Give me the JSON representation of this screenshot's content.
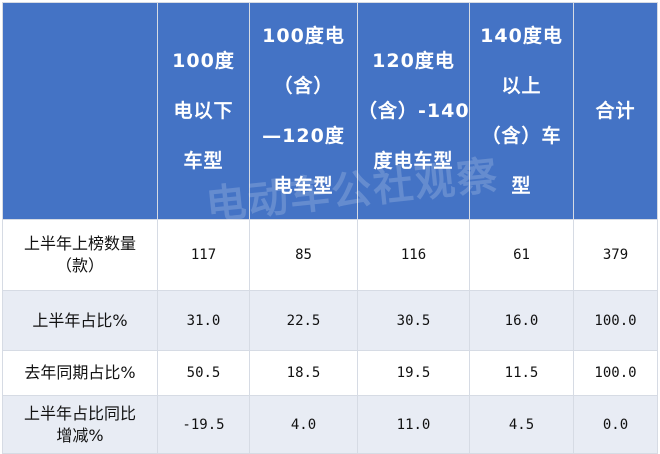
{
  "table": {
    "headers": [
      "",
      "100度\n电以下\n车型",
      "100度电\n（含）\n—120度\n电车型",
      "120度电\n（含）-140\n度电车型",
      "140度电\n以上\n（含）车\n型",
      "合计"
    ],
    "rows": [
      {
        "label": "上半年上榜数量\n（款）",
        "values": [
          "117",
          "85",
          "116",
          "61",
          "379"
        ]
      },
      {
        "label": "上半年占比%",
        "values": [
          "31.0",
          "22.5",
          "30.5",
          "16.0",
          "100.0"
        ]
      },
      {
        "label": "去年同期占比%",
        "values": [
          "50.5",
          "18.5",
          "19.5",
          "11.5",
          "100.0"
        ]
      },
      {
        "label": "上半年占比同比\n增减%",
        "values": [
          "-19.5",
          "4.0",
          "11.0",
          "4.5",
          "0.0"
        ]
      }
    ]
  },
  "watermark": "电动车公社观察",
  "colors": {
    "header_bg": "#4473c5",
    "header_text": "#ffffff",
    "stripe_bg": "#e8ecf4",
    "border": "#d6dbe4"
  }
}
